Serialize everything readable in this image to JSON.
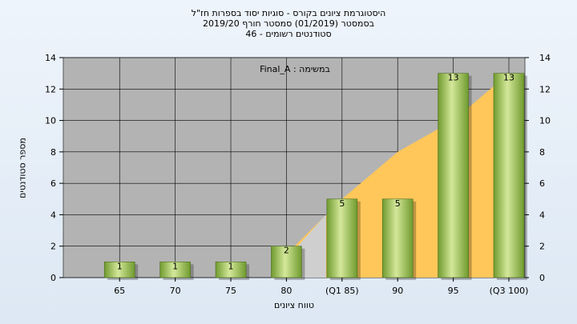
{
  "chart_data": {
    "type": "bar",
    "title_lines": [
      "היסטוגרמת ציונים בקורס - סוגיות יסוד בספרות חז\"ל",
      "בסמסטר  (01/2019)  סמסטר חורף 2019/20",
      "סטודנטים רשומים - 46"
    ],
    "ylabel": "מספר סטודנטים",
    "xlabel": "טווח ציונים",
    "legend": "במשימה : Final_A",
    "categories": [
      "65",
      "70",
      "75",
      "80",
      "(Q1 85)",
      "90",
      "95",
      "(Q3 100)"
    ],
    "values": [
      1,
      1,
      1,
      2,
      5,
      5,
      13,
      13
    ],
    "value_labels": [
      "1",
      "1",
      "1",
      "2",
      "5",
      "5",
      "13",
      "13"
    ],
    "ylim": [
      0,
      14
    ],
    "yticks": [
      0,
      2,
      4,
      6,
      8,
      10,
      12,
      14
    ],
    "ytick_labels": [
      "0",
      "2",
      "4",
      "6",
      "8",
      "10",
      "12",
      "14"
    ],
    "grid": true,
    "colors": {
      "plot_bg": "#b3b3b3",
      "bar_light": "#d4e89a",
      "bar_dark": "#6f9a2e",
      "area_fill": "#ffc75a",
      "grey_area": "#cfcfcf"
    }
  }
}
